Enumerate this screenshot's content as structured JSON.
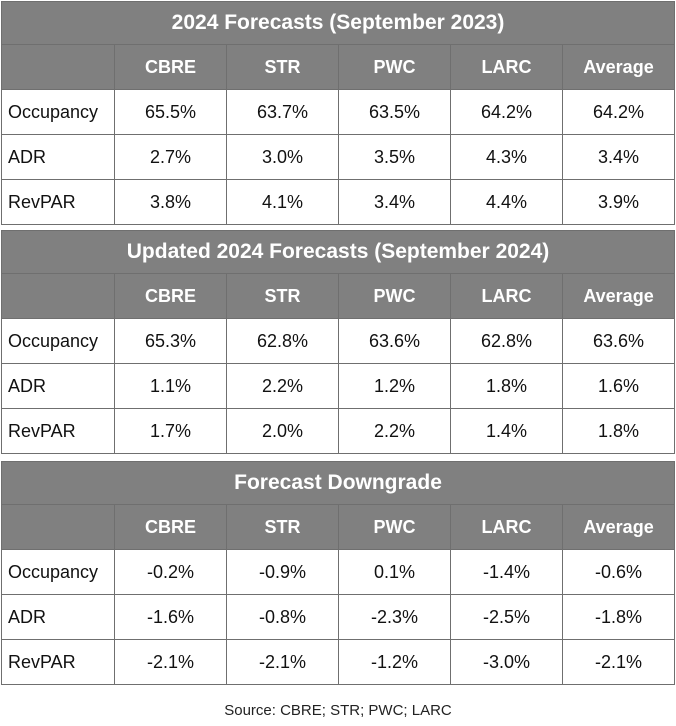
{
  "columns": [
    "CBRE",
    "STR",
    "PWC",
    "LARC",
    "Average"
  ],
  "tables": [
    {
      "title": "2024 Forecasts (September 2023)",
      "rows": [
        {
          "label": "Occupancy",
          "values": [
            "65.5%",
            "63.7%",
            "63.5%",
            "64.2%",
            "64.2%"
          ]
        },
        {
          "label": "ADR",
          "values": [
            "2.7%",
            "3.0%",
            "3.5%",
            "4.3%",
            "3.4%"
          ]
        },
        {
          "label": "RevPAR",
          "values": [
            "3.8%",
            "4.1%",
            "3.4%",
            "4.4%",
            "3.9%"
          ]
        }
      ]
    },
    {
      "title": "Updated 2024 Forecasts (September 2024)",
      "rows": [
        {
          "label": "Occupancy",
          "values": [
            "65.3%",
            "62.8%",
            "63.6%",
            "62.8%",
            "63.6%"
          ]
        },
        {
          "label": "ADR",
          "values": [
            "1.1%",
            "2.2%",
            "1.2%",
            "1.8%",
            "1.6%"
          ]
        },
        {
          "label": "RevPAR",
          "values": [
            "1.7%",
            "2.0%",
            "2.2%",
            "1.4%",
            "1.8%"
          ]
        }
      ]
    },
    {
      "title": "Forecast Downgrade",
      "rows": [
        {
          "label": "Occupancy",
          "values": [
            "-0.2%",
            "-0.9%",
            "0.1%",
            "-1.4%",
            "-0.6%"
          ]
        },
        {
          "label": "ADR",
          "values": [
            "-1.6%",
            "-0.8%",
            "-2.3%",
            "-2.5%",
            "-1.8%"
          ]
        },
        {
          "label": "RevPAR",
          "values": [
            "-2.1%",
            "-2.1%",
            "-1.2%",
            "-3.0%",
            "-2.1%"
          ]
        }
      ]
    }
  ],
  "source": "Source: CBRE; STR; PWC; LARC",
  "colors": {
    "header_bg": "#808080",
    "header_text": "#ffffff",
    "border": "#6f6f6f"
  }
}
